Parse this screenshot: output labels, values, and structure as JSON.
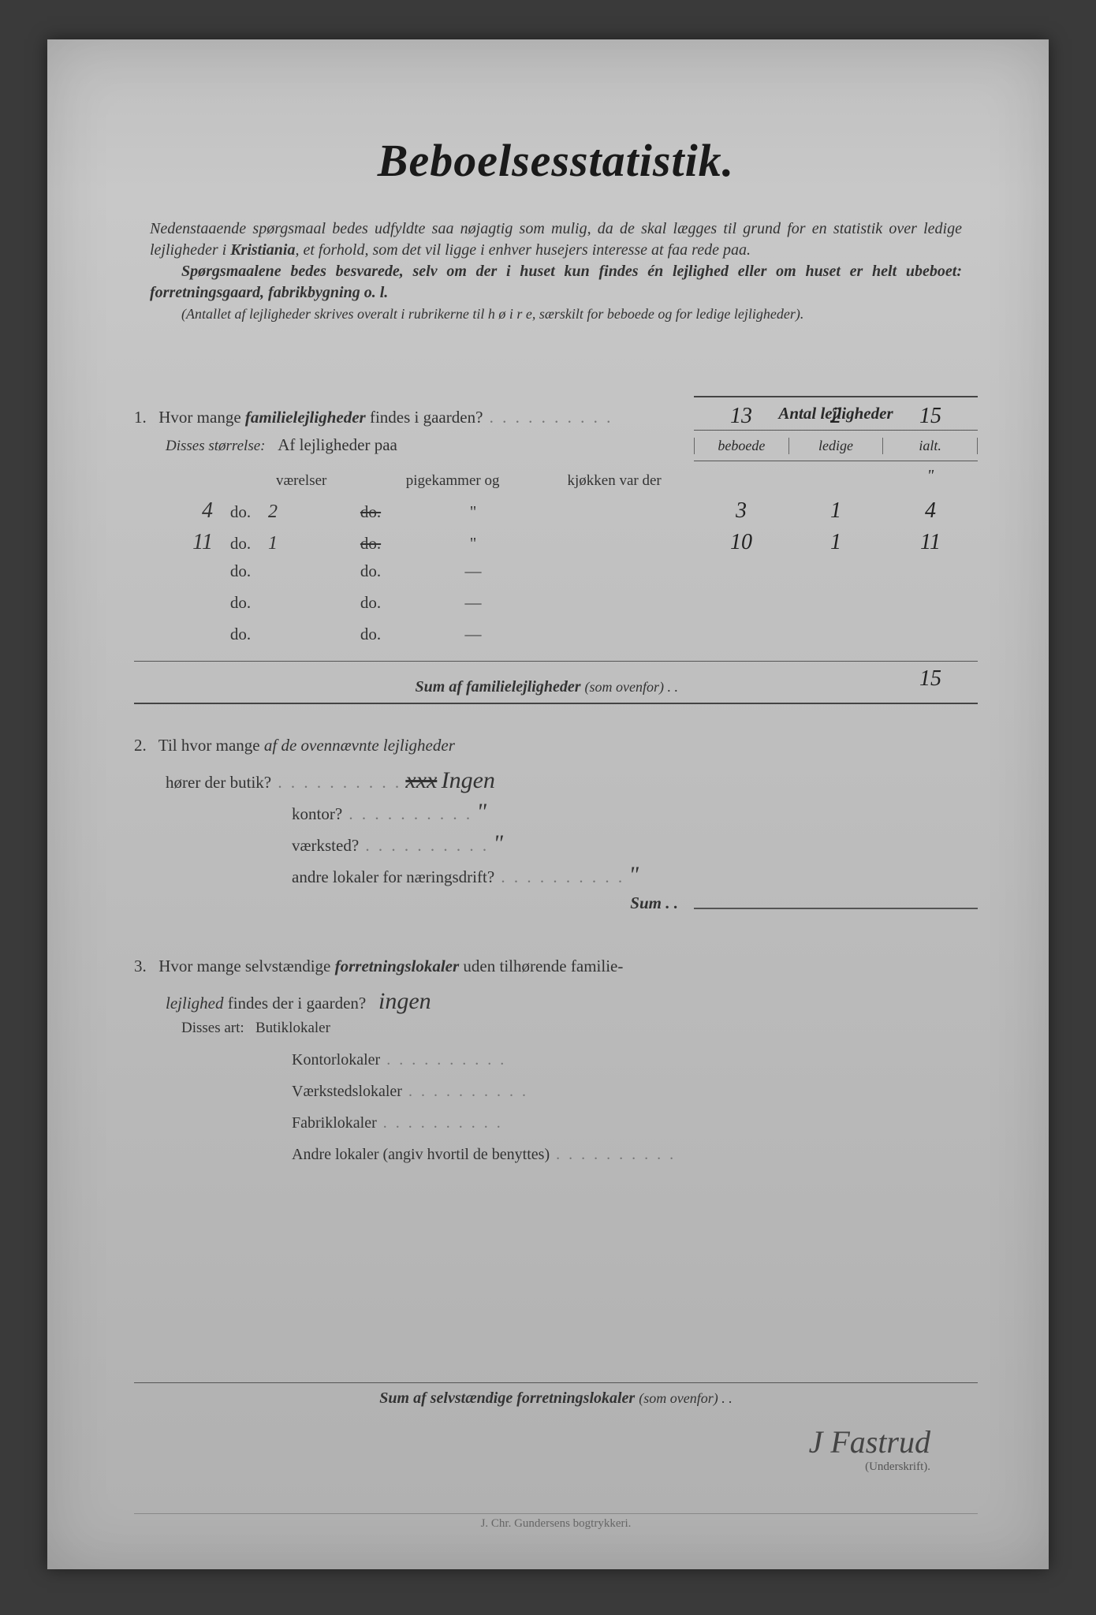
{
  "title": "Beboelsesstatistik.",
  "intro": {
    "p1a": "Nedenstaaende spørgsmaal bedes udfyldte saa nøjagtig som mulig, da de skal lægges til grund for en statistik over ledige lejligheder i ",
    "p1b": "Kristiania",
    "p1c": ", et forhold, som det vil ligge i enhver husejers interesse at faa rede paa.",
    "p2": "Spørgsmaalene bedes besvarede, selv om der i huset kun findes én lejlighed eller om huset er helt ubeboet: forretningsgaard, fabrikbygning o. l.",
    "p3": "(Antallet af lejligheder skrives overalt i rubrikerne til h ø i r e, særskilt for beboede og for ledige lejligheder)."
  },
  "colhead": {
    "title": "Antal lejligheder",
    "c1": "beboede",
    "c2": "ledige",
    "c3": "ialt."
  },
  "q1": {
    "num": "1.",
    "text_a": "Hvor mange ",
    "text_b": "familielejligheder",
    "text_c": " findes i gaarden?",
    "beboede": "13",
    "ledige": "2",
    "ialt": "15",
    "disses": "Disses størrelse:",
    "af": "Af lejligheder paa",
    "hdr_v": "værelser",
    "hdr_p": "pigekammer og",
    "hdr_k": "kjøkken var der",
    "rows": [
      {
        "lead": "4",
        "do": "do.",
        "v": "2",
        "strike": "do.",
        "q": "\"",
        "b": "3",
        "l": "1",
        "i": "4"
      },
      {
        "lead": "11",
        "do": "do.",
        "v": "1",
        "strike": "do.",
        "q": "\"",
        "b": "10",
        "l": "1",
        "i": "11"
      },
      {
        "lead": "",
        "do": "do.",
        "v": "",
        "strike": "do.",
        "q": "—",
        "b": "",
        "l": "",
        "i": ""
      },
      {
        "lead": "",
        "do": "do.",
        "v": "",
        "strike": "do.",
        "q": "—",
        "b": "",
        "l": "",
        "i": ""
      },
      {
        "lead": "",
        "do": "do.",
        "v": "",
        "strike": "do.",
        "q": "—",
        "b": "",
        "l": "",
        "i": ""
      }
    ],
    "sum_label": "Sum af familielejligheder",
    "sum_paren": "(som ovenfor) . .",
    "sum_ialt": "15"
  },
  "q2": {
    "num": "2.",
    "text_a": "Til hvor mange ",
    "text_b": "af de ovennævnte lejligheder",
    "lines": [
      {
        "label": "hører der butik?",
        "ans_strike": "xxx",
        "ans": "Ingen"
      },
      {
        "label": "kontor?",
        "ans": "\""
      },
      {
        "label": "værksted?",
        "ans": "\""
      },
      {
        "label": "andre lokaler for næringsdrift?",
        "ans": "\""
      }
    ],
    "sum": "Sum . ."
  },
  "q3": {
    "num": "3.",
    "text_a": "Hvor mange selvstændige ",
    "text_b": "forretningslokaler",
    "text_c": " uden tilhørende familie-",
    "text_d": "lejlighed",
    "text_e": " findes der i gaarden?",
    "ans": "ingen",
    "disses": "Disses art:",
    "items": [
      "Butiklokaler",
      "Kontorlokaler",
      "Værkstedslokaler",
      "Fabriklokaler",
      "Andre lokaler (angiv hvortil de benyttes)"
    ]
  },
  "bottom_sum_a": "Sum af selvstændige forretningslokaler",
  "bottom_sum_b": "(som ovenfor) . .",
  "signature": {
    "hand": "J Fastrud",
    "label": "(Underskrift)."
  },
  "printer": "J. Chr. Gundersens bogtrykkeri."
}
